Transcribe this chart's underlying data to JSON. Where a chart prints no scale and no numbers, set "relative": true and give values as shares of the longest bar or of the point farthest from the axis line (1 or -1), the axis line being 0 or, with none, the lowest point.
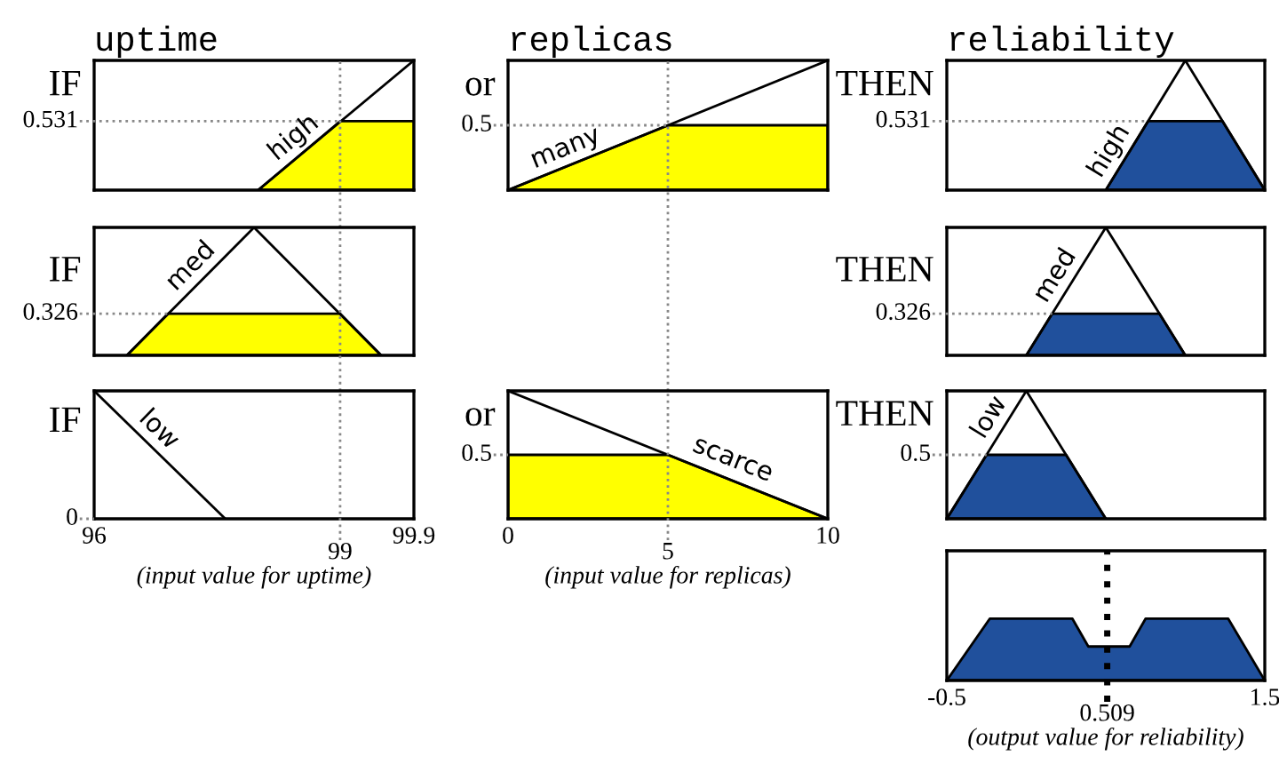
{
  "chart_data": [
    {
      "type": "line",
      "title": "uptime",
      "ylabel": "IF",
      "relative": true,
      "xlim": [
        96,
        99.9
      ],
      "tick_labels": false,
      "series": [
        {
          "type": "area",
          "color": "#ffff00",
          "x": [
            98,
            99,
            99.9
          ],
          "values": [
            0,
            0.531,
            0.531
          ]
        },
        {
          "name": "high",
          "color": "#000000",
          "x": [
            98,
            99.9
          ],
          "values": [
            0,
            1
          ]
        }
      ],
      "ref_lines": [
        {
          "axis": "x",
          "value": 99,
          "color": "#888888",
          "line_style": "dotted"
        },
        {
          "axis": "y",
          "value": 0.531,
          "label": "0.531",
          "color": "#888888",
          "line_style": "dotted"
        }
      ]
    },
    {
      "type": "line",
      "title": "replicas",
      "ylabel": "or",
      "relative": true,
      "xlim": [
        0,
        10
      ],
      "tick_labels": false,
      "series": [
        {
          "type": "area",
          "color": "#ffff00",
          "x": [
            0,
            5,
            10
          ],
          "values": [
            0,
            0.5,
            0.5
          ]
        },
        {
          "name": "many",
          "color": "#000000",
          "x": [
            0,
            10
          ],
          "values": [
            0,
            1
          ]
        }
      ],
      "ref_lines": [
        {
          "axis": "x",
          "value": 5,
          "color": "#888888",
          "line_style": "dotted"
        },
        {
          "axis": "y",
          "value": 0.5,
          "label": "0.5",
          "color": "#888888",
          "line_style": "dotted"
        }
      ]
    },
    {
      "type": "line",
      "title": "reliability",
      "ylabel": "THEN",
      "relative": true,
      "xlim": [
        -0.5,
        1.5
      ],
      "tick_labels": false,
      "series": [
        {
          "type": "area",
          "color": "#20509c",
          "x": [
            0.5,
            0.766,
            1.234,
            1.5
          ],
          "values": [
            0,
            0.531,
            0.531,
            0
          ]
        },
        {
          "name": "high",
          "color": "#000000",
          "x": [
            0.5,
            1,
            1.5
          ],
          "values": [
            0,
            1,
            0
          ]
        }
      ],
      "ref_lines": [
        {
          "axis": "y",
          "value": 0.531,
          "label": "0.531",
          "color": "#888888",
          "line_style": "dotted"
        }
      ]
    },
    {
      "type": "line",
      "ylabel": "IF",
      "relative": true,
      "xlim": [
        96,
        99.9
      ],
      "tick_labels": false,
      "series": [
        {
          "type": "area",
          "color": "#ffff00",
          "x": [
            96.4,
            96.9,
            99,
            99.5
          ],
          "values": [
            0,
            0.326,
            0.326,
            0
          ]
        },
        {
          "name": "med",
          "color": "#000000",
          "x": [
            96.4,
            97.95,
            99.5
          ],
          "values": [
            0,
            1,
            0
          ]
        }
      ],
      "ref_lines": [
        {
          "axis": "x",
          "value": 99,
          "color": "#888888",
          "line_style": "dotted"
        },
        {
          "axis": "y",
          "value": 0.326,
          "label": "0.326",
          "color": "#888888",
          "line_style": "dotted"
        }
      ]
    },
    {
      "type": "line",
      "ylabel": "THEN",
      "relative": true,
      "xlim": [
        -0.5,
        1.5
      ],
      "tick_labels": false,
      "series": [
        {
          "type": "area",
          "color": "#20509c",
          "x": [
            0,
            0.163,
            0.837,
            1
          ],
          "values": [
            0,
            0.326,
            0.326,
            0
          ]
        },
        {
          "name": "med",
          "color": "#000000",
          "x": [
            0,
            0.5,
            1
          ],
          "values": [
            0,
            1,
            0
          ]
        }
      ],
      "ref_lines": [
        {
          "axis": "y",
          "value": 0.326,
          "label": "0.326",
          "color": "#888888",
          "line_style": "dotted"
        }
      ]
    },
    {
      "type": "line",
      "ylabel": "IF",
      "xlabel": "(input value for uptime)",
      "relative": true,
      "xlim": [
        96,
        99.9
      ],
      "xticks": [
        96,
        99.9
      ],
      "tick_labels": "x",
      "series": [
        {
          "name": "low",
          "color": "#000000",
          "x": [
            96,
            97.6
          ],
          "values": [
            1,
            0
          ]
        }
      ],
      "ref_lines": [
        {
          "axis": "x",
          "value": 99,
          "label": "99",
          "color": "#888888",
          "line_style": "dotted"
        },
        {
          "axis": "y",
          "value": 0,
          "label": "0",
          "color": "#888888",
          "line_style": "dotted"
        }
      ]
    },
    {
      "type": "line",
      "ylabel": "or",
      "xlabel": "(input value for replicas)",
      "relative": true,
      "xlim": [
        0,
        10
      ],
      "xticks": [
        0,
        10
      ],
      "tick_labels": "x",
      "series": [
        {
          "type": "area",
          "color": "#ffff00",
          "x": [
            0,
            5,
            10
          ],
          "values": [
            0.5,
            0.5,
            0
          ]
        },
        {
          "name": "scarce",
          "color": "#000000",
          "x": [
            0,
            10
          ],
          "values": [
            1,
            0
          ]
        }
      ],
      "ref_lines": [
        {
          "axis": "x",
          "value": 5,
          "label": "5",
          "color": "#888888",
          "line_style": "dotted"
        },
        {
          "axis": "y",
          "value": 0.5,
          "label": "0.5",
          "color": "#888888",
          "line_style": "dotted"
        }
      ]
    },
    {
      "type": "line",
      "ylabel": "THEN",
      "relative": true,
      "xlim": [
        -0.5,
        1.5
      ],
      "tick_labels": false,
      "series": [
        {
          "type": "area",
          "color": "#20509c",
          "x": [
            -0.5,
            -0.25,
            0.25,
            0.5
          ],
          "values": [
            0,
            0.5,
            0.5,
            0
          ]
        },
        {
          "name": "low",
          "color": "#000000",
          "x": [
            -0.5,
            0,
            0.5
          ],
          "values": [
            0,
            1,
            0
          ]
        }
      ],
      "ref_lines": [
        {
          "axis": "y",
          "value": 0.5,
          "label": "0.5",
          "color": "#888888",
          "line_style": "dotted"
        }
      ]
    },
    {
      "type": "area",
      "xlabel": "(output value for reliability)",
      "relative": true,
      "xlim": [
        -0.5,
        1.5
      ],
      "xticks": [
        -0.5,
        1.5
      ],
      "tick_labels": "x",
      "series": [
        {
          "color": "#20509c",
          "x": [
            -0.5,
            -0.23,
            0.29,
            0.39,
            0.65,
            0.75,
            1.27,
            1.5
          ],
          "values": [
            0,
            1,
            1,
            0.55,
            0.55,
            1,
            1,
            0
          ]
        }
      ],
      "ref_lines": [
        {
          "axis": "x",
          "value": 0.509,
          "label": "0.509",
          "color": "#000000",
          "line_style": "dotted"
        }
      ]
    }
  ]
}
